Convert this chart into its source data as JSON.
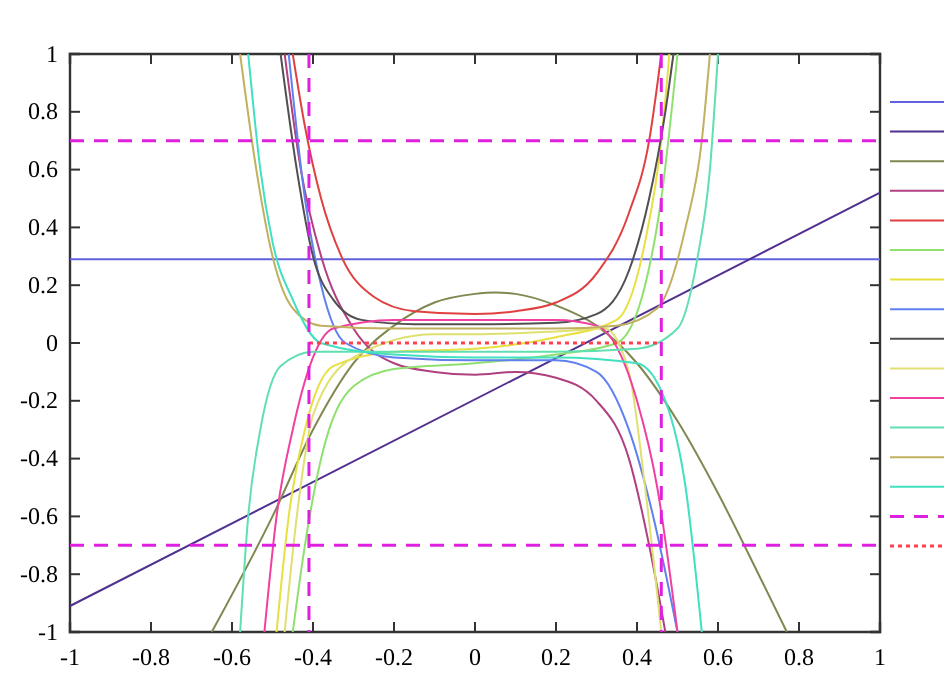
{
  "chart_data": {
    "type": "line",
    "xlim": [
      -1,
      1
    ],
    "ylim": [
      -1,
      1
    ],
    "xticks": [
      -1,
      -0.8,
      -0.6,
      -0.4,
      -0.2,
      0,
      0.2,
      0.4,
      0.6,
      0.8,
      1
    ],
    "yticks": [
      -1,
      -0.8,
      -0.6,
      -0.4,
      -0.2,
      0,
      0.2,
      0.4,
      0.6,
      0.8,
      1
    ],
    "grid": false,
    "ref_lines": [
      {
        "axis": "y",
        "value": -0.7,
        "color": "#e020e0",
        "line_style": "dashed"
      },
      {
        "axis": "x",
        "value": -0.41,
        "color": "#e020e0",
        "line_style": "dashed"
      },
      {
        "axis": "x",
        "value": 0.46,
        "color": "#e020e0",
        "line_style": "dashed"
      }
    ],
    "series": [
      {
        "color": "#6060e0",
        "x": [
          -1,
          1
        ],
        "values": [
          0.29,
          0.29
        ]
      },
      {
        "color": "#503090",
        "x": [
          -1,
          1
        ],
        "values": [
          -0.91,
          0.52
        ]
      },
      {
        "color": "#808850",
        "x": [
          -0.65,
          -0.5,
          -0.4,
          -0.3,
          -0.2,
          -0.1,
          0,
          0.05,
          0.1,
          0.2,
          0.3,
          0.4,
          0.5,
          0.6,
          0.7,
          0.77
        ],
        "values": [
          -1,
          -0.6,
          -0.3,
          -0.07,
          0.06,
          0.14,
          0.17,
          0.175,
          0.17,
          0.13,
          0.06,
          -0.07,
          -0.27,
          -0.52,
          -0.8,
          -1
        ]
      },
      {
        "color": "#b04080",
        "x": [
          -0.47,
          -0.43,
          -0.38,
          -0.3,
          -0.2,
          -0.1,
          0,
          0.1,
          0.2,
          0.3,
          0.38,
          0.43,
          0.47
        ],
        "values": [
          1,
          0.6,
          0.3,
          0.05,
          -0.07,
          -0.1,
          -0.11,
          -0.1,
          -0.12,
          -0.2,
          -0.4,
          -0.7,
          -1
        ]
      },
      {
        "color": "#e04040",
        "x": [
          -0.45,
          -0.42,
          -0.38,
          -0.33,
          -0.25,
          -0.15,
          0,
          0.1,
          0.2,
          0.3,
          0.38,
          0.43,
          0.46
        ],
        "values": [
          1,
          0.75,
          0.5,
          0.3,
          0.16,
          0.11,
          0.1,
          0.11,
          0.14,
          0.24,
          0.45,
          0.7,
          1
        ]
      },
      {
        "color": "#90e070",
        "x": [
          -0.45,
          -0.42,
          -0.38,
          -0.3,
          -0.2,
          0,
          0.2,
          0.35,
          0.42,
          0.46,
          0.5
        ],
        "values": [
          -1,
          -0.7,
          -0.4,
          -0.15,
          -0.09,
          -0.07,
          -0.04,
          0,
          0.2,
          0.5,
          1
        ]
      },
      {
        "color": "#e8e040",
        "x": [
          -0.49,
          -0.46,
          -0.42,
          -0.35,
          -0.2,
          0,
          0.2,
          0.35,
          0.42,
          0.46,
          0.48
        ],
        "values": [
          -1,
          -0.6,
          -0.3,
          -0.08,
          -0.03,
          -0.02,
          0.02,
          0.08,
          0.35,
          0.7,
          1
        ]
      },
      {
        "color": "#6080f0",
        "x": [
          -0.46,
          -0.42,
          -0.38,
          -0.32,
          -0.2,
          0,
          0.2,
          0.3,
          0.38,
          0.44,
          0.5
        ],
        "values": [
          1,
          0.5,
          0.2,
          0,
          -0.05,
          -0.06,
          -0.06,
          -0.1,
          -0.3,
          -0.6,
          -1
        ]
      },
      {
        "color": "#505050",
        "x": [
          -0.48,
          -0.44,
          -0.4,
          -0.35,
          -0.28,
          -0.15,
          0,
          0.2,
          0.3,
          0.38,
          0.43,
          0.47,
          0.49
        ],
        "values": [
          1,
          0.6,
          0.3,
          0.15,
          0.08,
          0.065,
          0.065,
          0.07,
          0.1,
          0.25,
          0.5,
          0.8,
          1
        ]
      },
      {
        "color": "#e0e070",
        "x": [
          -0.47,
          -0.44,
          -0.4,
          -0.3,
          -0.1,
          0,
          0.2,
          0.32,
          0.38,
          0.42,
          0.46
        ],
        "values": [
          -1,
          -0.6,
          -0.25,
          -0.05,
          0.03,
          0.03,
          0.04,
          0.05,
          -0.1,
          -0.5,
          -1
        ]
      },
      {
        "color": "#f040a0",
        "x": [
          -0.52,
          -0.49,
          -0.45,
          -0.4,
          -0.35,
          -0.2,
          0,
          0.2,
          0.3,
          0.4,
          0.45,
          0.5
        ],
        "values": [
          -1,
          -0.6,
          -0.3,
          -0.05,
          0.05,
          0.08,
          0.08,
          0.08,
          0.06,
          -0.2,
          -0.5,
          -1
        ]
      },
      {
        "color": "#60e0b0",
        "x": [
          -0.58,
          -0.56,
          -0.53,
          -0.48,
          -0.4,
          -0.2,
          0,
          0.2,
          0.4,
          0.5,
          0.55,
          0.58,
          0.6
        ],
        "values": [
          -1,
          -0.6,
          -0.3,
          -0.08,
          -0.03,
          -0.03,
          -0.03,
          -0.03,
          -0.02,
          0.05,
          0.3,
          0.6,
          1
        ]
      },
      {
        "color": "#c0b060",
        "x": [
          -0.58,
          -0.54,
          -0.5,
          -0.45,
          -0.38,
          -0.2,
          0,
          0.2,
          0.35,
          0.45,
          0.52,
          0.56,
          0.58
        ],
        "values": [
          1,
          0.6,
          0.3,
          0.12,
          0.06,
          0.05,
          0.05,
          0.05,
          0.06,
          0.12,
          0.4,
          0.7,
          1
        ]
      },
      {
        "color": "#40e0c0",
        "x": [
          -0.56,
          -0.53,
          -0.5,
          -0.45,
          -0.38,
          -0.2,
          0,
          0.2,
          0.4,
          0.47,
          0.52,
          0.56
        ],
        "values": [
          1,
          0.6,
          0.35,
          0.15,
          0,
          -0.04,
          -0.05,
          -0.05,
          -0.07,
          -0.2,
          -0.5,
          -1
        ]
      },
      {
        "color": "#e020e0",
        "line_style": "dashed",
        "x": [
          -1,
          1
        ],
        "values": [
          0.7,
          0.7
        ]
      },
      {
        "color": "#ff4050",
        "line_style": "dotted",
        "x": [
          -0.41,
          0.46
        ],
        "values": [
          0,
          0
        ]
      }
    ]
  }
}
